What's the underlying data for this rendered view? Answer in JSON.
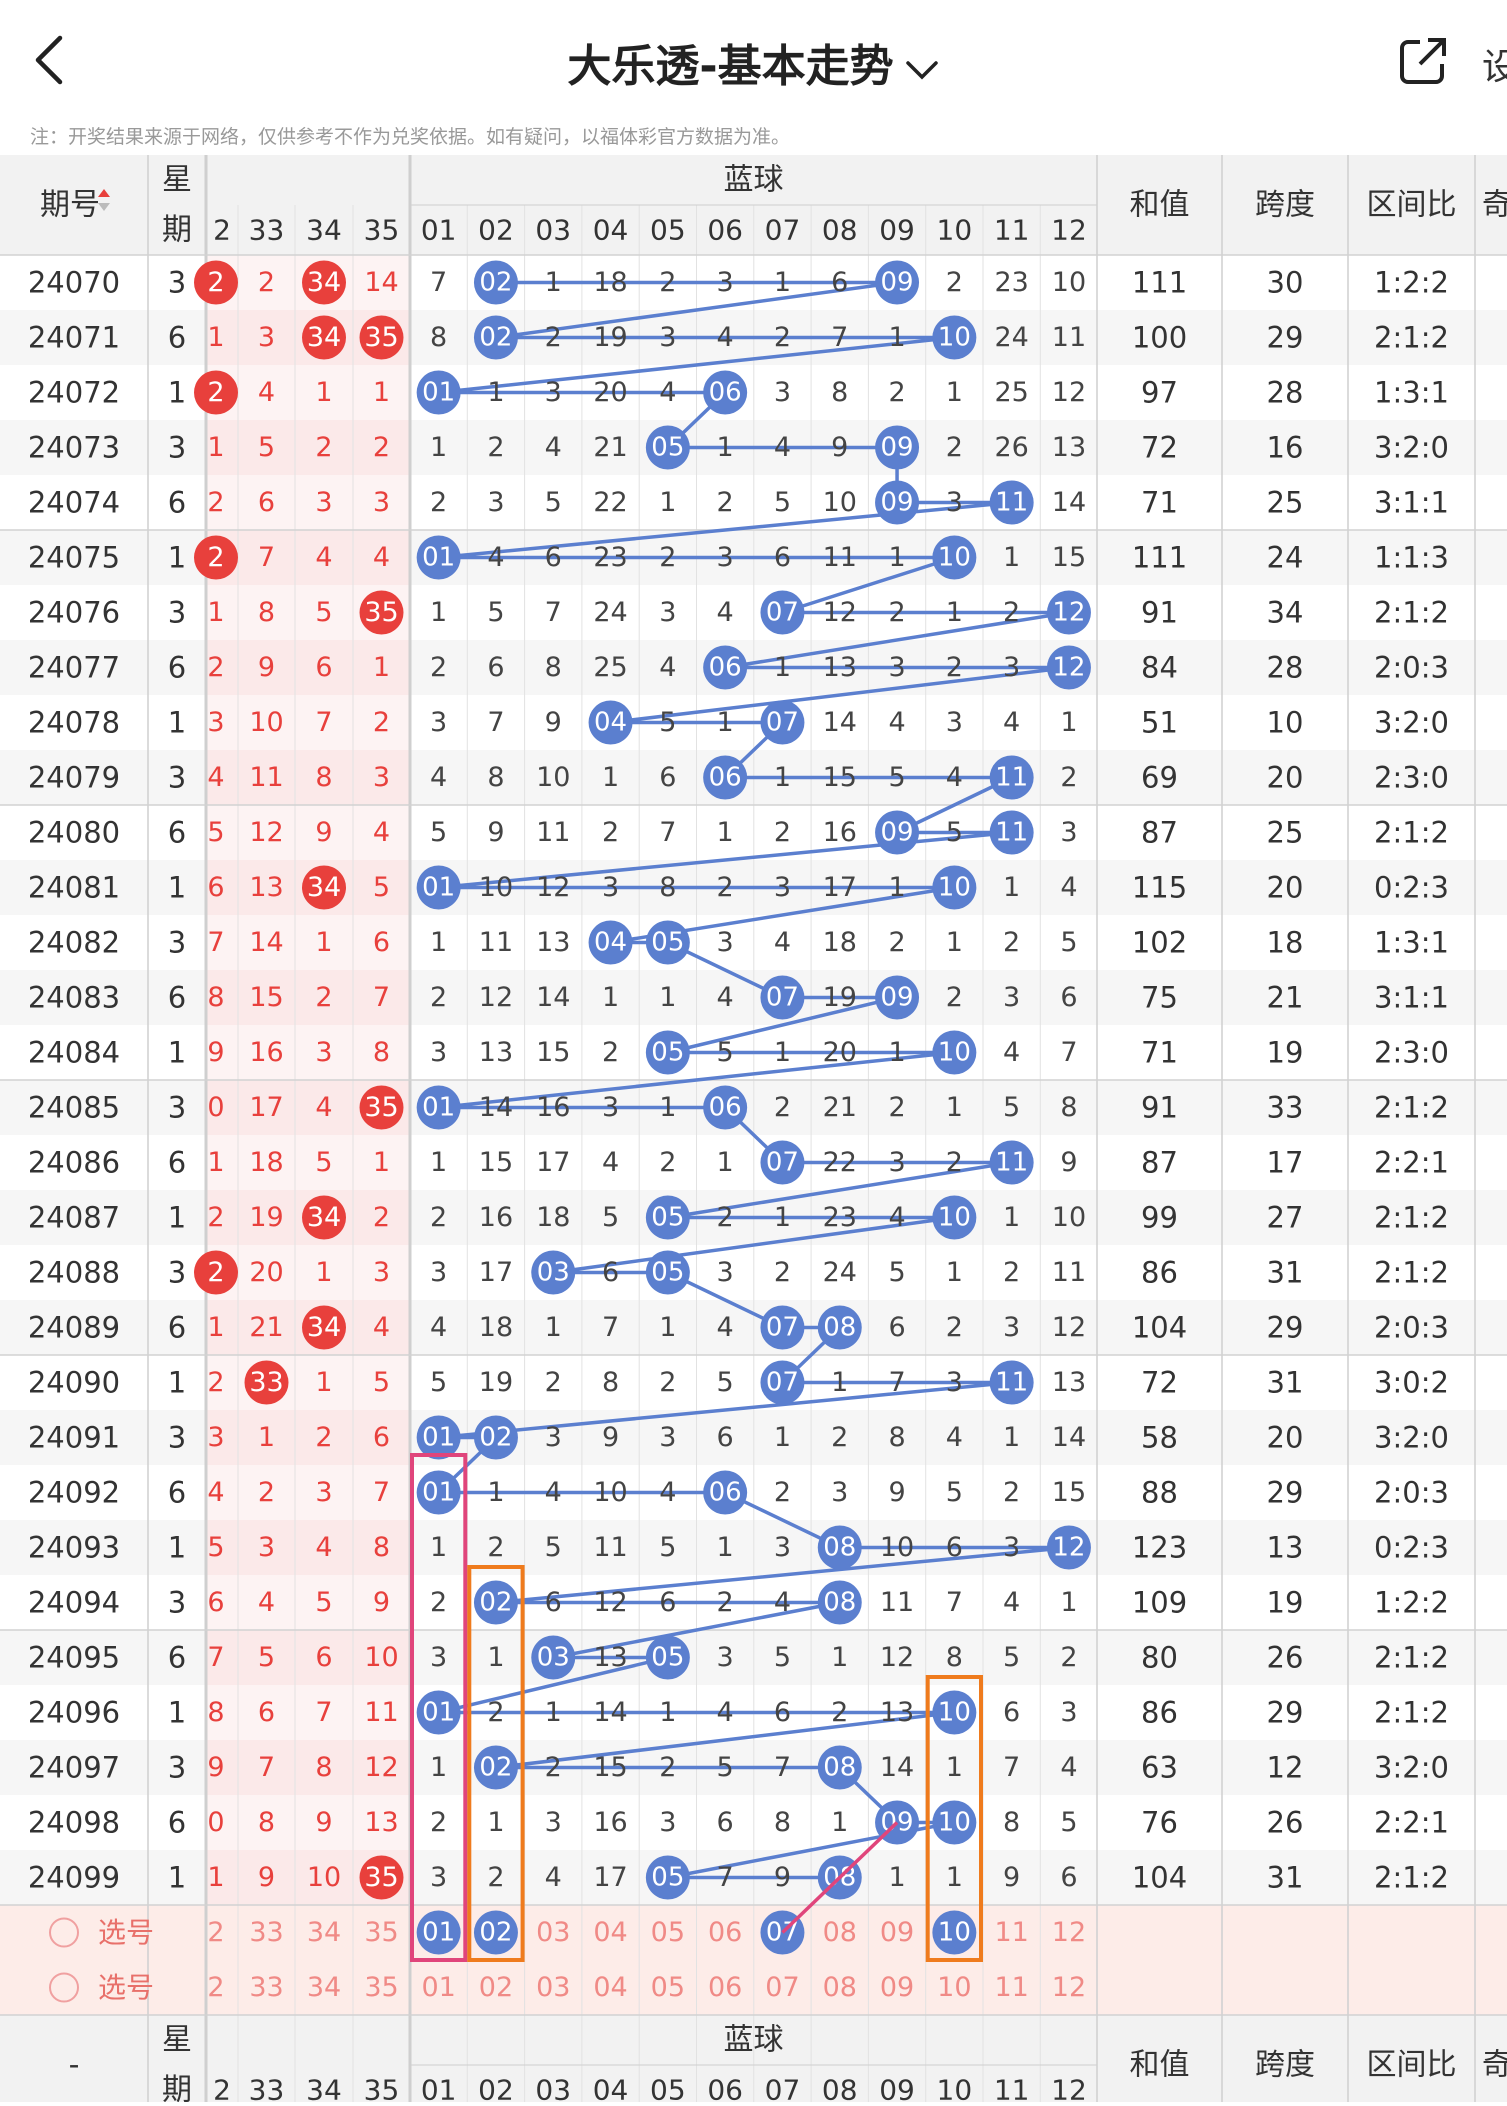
{
  "header": {
    "title": "大乐透-基本走势",
    "settings_label": "设"
  },
  "notice": "注：开奖结果来源于网络，仅供参考不作为兑奖依据。如有疑问，以福体彩官方数据为准。",
  "table": {
    "col_issue": "期号",
    "col_week1": "星",
    "col_week2": "期",
    "blue_title": "蓝球",
    "col_sum": "和值",
    "col_span": "跨度",
    "col_ratio": "区间比",
    "col_odd": "奇",
    "red_headers": [
      "2",
      "33",
      "34",
      "35"
    ],
    "blue_headers": [
      "01",
      "02",
      "03",
      "04",
      "05",
      "06",
      "07",
      "08",
      "09",
      "10",
      "11",
      "12"
    ],
    "bottom_issue": "-",
    "select_label": "选号",
    "select_red": [
      "2",
      "33",
      "34",
      "35"
    ],
    "select1_blue": [
      "01",
      "02",
      "03",
      "04",
      "05",
      "06",
      "07",
      "08",
      "09",
      "10",
      "11",
      "12"
    ],
    "select1_hits": [
      1,
      2,
      7,
      10
    ],
    "select2_blue": [
      "01",
      "02",
      "03",
      "04",
      "05",
      "06",
      "07",
      "08",
      "09",
      "10",
      "11",
      "12"
    ],
    "rows": [
      {
        "issue": "24070",
        "week": "3",
        "red": [
          "2",
          "2",
          "34",
          "14"
        ],
        "redhits": [
          0,
          2
        ],
        "blue": [
          "7",
          "02",
          "1",
          "18",
          "2",
          "3",
          "1",
          "6",
          "09",
          "2",
          "23",
          "10"
        ],
        "hits": [
          2,
          9
        ],
        "sum": "111",
        "span": "30",
        "ratio": "1:2:2"
      },
      {
        "issue": "24071",
        "week": "6",
        "red": [
          "1",
          "3",
          "34",
          "35"
        ],
        "redhits": [
          2,
          3
        ],
        "blue": [
          "8",
          "02",
          "2",
          "19",
          "3",
          "4",
          "2",
          "7",
          "1",
          "10",
          "24",
          "11"
        ],
        "hits": [
          2,
          10
        ],
        "sum": "100",
        "span": "29",
        "ratio": "2:1:2"
      },
      {
        "issue": "24072",
        "week": "1",
        "red": [
          "2",
          "4",
          "1",
          "1"
        ],
        "redhits": [
          0
        ],
        "blue": [
          "01",
          "1",
          "3",
          "20",
          "4",
          "06",
          "3",
          "8",
          "2",
          "1",
          "25",
          "12"
        ],
        "hits": [
          1,
          6
        ],
        "sum": "97",
        "span": "28",
        "ratio": "1:3:1"
      },
      {
        "issue": "24073",
        "week": "3",
        "red": [
          "1",
          "5",
          "2",
          "2"
        ],
        "redhits": [],
        "blue": [
          "1",
          "2",
          "4",
          "21",
          "05",
          "1",
          "4",
          "9",
          "09",
          "2",
          "26",
          "13"
        ],
        "hits": [
          5,
          9
        ],
        "sum": "72",
        "span": "16",
        "ratio": "3:2:0"
      },
      {
        "issue": "24074",
        "week": "6",
        "red": [
          "2",
          "6",
          "3",
          "3"
        ],
        "redhits": [],
        "blue": [
          "2",
          "3",
          "5",
          "22",
          "1",
          "2",
          "5",
          "10",
          "09",
          "3",
          "11",
          "14"
        ],
        "hits": [
          9,
          11
        ],
        "sum": "71",
        "span": "25",
        "ratio": "3:1:1"
      },
      {
        "issue": "24075",
        "week": "1",
        "red": [
          "2",
          "7",
          "4",
          "4"
        ],
        "redhits": [
          0
        ],
        "blue": [
          "01",
          "4",
          "6",
          "23",
          "2",
          "3",
          "6",
          "11",
          "1",
          "10",
          "1",
          "15"
        ],
        "hits": [
          1,
          10
        ],
        "sum": "111",
        "span": "24",
        "ratio": "1:1:3"
      },
      {
        "issue": "24076",
        "week": "3",
        "red": [
          "1",
          "8",
          "5",
          "35"
        ],
        "redhits": [
          3
        ],
        "blue": [
          "1",
          "5",
          "7",
          "24",
          "3",
          "4",
          "07",
          "12",
          "2",
          "1",
          "2",
          "12"
        ],
        "hits": [
          7,
          12
        ],
        "sum": "91",
        "span": "34",
        "ratio": "2:1:2"
      },
      {
        "issue": "24077",
        "week": "6",
        "red": [
          "2",
          "9",
          "6",
          "1"
        ],
        "redhits": [],
        "blue": [
          "2",
          "6",
          "8",
          "25",
          "4",
          "06",
          "1",
          "13",
          "3",
          "2",
          "3",
          "12"
        ],
        "hits": [
          6,
          12
        ],
        "sum": "84",
        "span": "28",
        "ratio": "2:0:3"
      },
      {
        "issue": "24078",
        "week": "1",
        "red": [
          "3",
          "10",
          "7",
          "2"
        ],
        "redhits": [],
        "blue": [
          "3",
          "7",
          "9",
          "04",
          "5",
          "1",
          "07",
          "14",
          "4",
          "3",
          "4",
          "1"
        ],
        "hits": [
          4,
          7
        ],
        "sum": "51",
        "span": "10",
        "ratio": "3:2:0"
      },
      {
        "issue": "24079",
        "week": "3",
        "red": [
          "4",
          "11",
          "8",
          "3"
        ],
        "redhits": [],
        "blue": [
          "4",
          "8",
          "10",
          "1",
          "6",
          "06",
          "1",
          "15",
          "5",
          "4",
          "11",
          "2"
        ],
        "hits": [
          6,
          11
        ],
        "sum": "69",
        "span": "20",
        "ratio": "2:3:0"
      },
      {
        "issue": "24080",
        "week": "6",
        "red": [
          "5",
          "12",
          "9",
          "4"
        ],
        "redhits": [],
        "blue": [
          "5",
          "9",
          "11",
          "2",
          "7",
          "1",
          "2",
          "16",
          "09",
          "5",
          "11",
          "3"
        ],
        "hits": [
          9,
          11
        ],
        "sum": "87",
        "span": "25",
        "ratio": "2:1:2"
      },
      {
        "issue": "24081",
        "week": "1",
        "red": [
          "6",
          "13",
          "34",
          "5"
        ],
        "redhits": [
          2
        ],
        "blue": [
          "01",
          "10",
          "12",
          "3",
          "8",
          "2",
          "3",
          "17",
          "1",
          "10",
          "1",
          "4"
        ],
        "hits": [
          1,
          10
        ],
        "sum": "115",
        "span": "20",
        "ratio": "0:2:3"
      },
      {
        "issue": "24082",
        "week": "3",
        "red": [
          "7",
          "14",
          "1",
          "6"
        ],
        "redhits": [],
        "blue": [
          "1",
          "11",
          "13",
          "04",
          "05",
          "3",
          "4",
          "18",
          "2",
          "1",
          "2",
          "5"
        ],
        "hits": [
          4,
          5
        ],
        "sum": "102",
        "span": "18",
        "ratio": "1:3:1"
      },
      {
        "issue": "24083",
        "week": "6",
        "red": [
          "8",
          "15",
          "2",
          "7"
        ],
        "redhits": [],
        "blue": [
          "2",
          "12",
          "14",
          "1",
          "1",
          "4",
          "07",
          "19",
          "09",
          "2",
          "3",
          "6"
        ],
        "hits": [
          7,
          9
        ],
        "sum": "75",
        "span": "21",
        "ratio": "3:1:1"
      },
      {
        "issue": "24084",
        "week": "1",
        "red": [
          "9",
          "16",
          "3",
          "8"
        ],
        "redhits": [],
        "blue": [
          "3",
          "13",
          "15",
          "2",
          "05",
          "5",
          "1",
          "20",
          "1",
          "10",
          "4",
          "7"
        ],
        "hits": [
          5,
          10
        ],
        "sum": "71",
        "span": "19",
        "ratio": "2:3:0"
      },
      {
        "issue": "24085",
        "week": "3",
        "red": [
          "0",
          "17",
          "4",
          "35"
        ],
        "redhits": [
          3
        ],
        "blue": [
          "01",
          "14",
          "16",
          "3",
          "1",
          "06",
          "2",
          "21",
          "2",
          "1",
          "5",
          "8"
        ],
        "hits": [
          1,
          6
        ],
        "sum": "91",
        "span": "33",
        "ratio": "2:1:2"
      },
      {
        "issue": "24086",
        "week": "6",
        "red": [
          "1",
          "18",
          "5",
          "1"
        ],
        "redhits": [],
        "blue": [
          "1",
          "15",
          "17",
          "4",
          "2",
          "1",
          "07",
          "22",
          "3",
          "2",
          "11",
          "9"
        ],
        "hits": [
          7,
          11
        ],
        "sum": "87",
        "span": "17",
        "ratio": "2:2:1"
      },
      {
        "issue": "24087",
        "week": "1",
        "red": [
          "2",
          "19",
          "34",
          "2"
        ],
        "redhits": [
          2
        ],
        "blue": [
          "2",
          "16",
          "18",
          "5",
          "05",
          "2",
          "1",
          "23",
          "4",
          "10",
          "1",
          "10"
        ],
        "hits": [
          5,
          10
        ],
        "sum": "99",
        "span": "27",
        "ratio": "2:1:2"
      },
      {
        "issue": "24088",
        "week": "3",
        "red": [
          "2",
          "20",
          "1",
          "3"
        ],
        "redhits": [
          0
        ],
        "blue": [
          "3",
          "17",
          "03",
          "6",
          "05",
          "3",
          "2",
          "24",
          "5",
          "1",
          "2",
          "11"
        ],
        "hits": [
          3,
          5
        ],
        "sum": "86",
        "span": "31",
        "ratio": "2:1:2"
      },
      {
        "issue": "24089",
        "week": "6",
        "red": [
          "1",
          "21",
          "34",
          "4"
        ],
        "redhits": [
          2
        ],
        "blue": [
          "4",
          "18",
          "1",
          "7",
          "1",
          "4",
          "07",
          "08",
          "6",
          "2",
          "3",
          "12"
        ],
        "hits": [
          7,
          8
        ],
        "sum": "104",
        "span": "29",
        "ratio": "2:0:3"
      },
      {
        "issue": "24090",
        "week": "1",
        "red": [
          "2",
          "33",
          "1",
          "5"
        ],
        "redhits": [
          1
        ],
        "blue": [
          "5",
          "19",
          "2",
          "8",
          "2",
          "5",
          "07",
          "1",
          "7",
          "3",
          "11",
          "13"
        ],
        "hits": [
          7,
          11
        ],
        "sum": "72",
        "span": "31",
        "ratio": "3:0:2"
      },
      {
        "issue": "24091",
        "week": "3",
        "red": [
          "3",
          "1",
          "2",
          "6"
        ],
        "redhits": [],
        "blue": [
          "01",
          "02",
          "3",
          "9",
          "3",
          "6",
          "1",
          "2",
          "8",
          "4",
          "1",
          "14"
        ],
        "hits": [
          1,
          2
        ],
        "sum": "58",
        "span": "20",
        "ratio": "3:2:0"
      },
      {
        "issue": "24092",
        "week": "6",
        "red": [
          "4",
          "2",
          "3",
          "7"
        ],
        "redhits": [],
        "blue": [
          "01",
          "1",
          "4",
          "10",
          "4",
          "06",
          "2",
          "3",
          "9",
          "5",
          "2",
          "15"
        ],
        "hits": [
          1,
          6
        ],
        "sum": "88",
        "span": "29",
        "ratio": "2:0:3"
      },
      {
        "issue": "24093",
        "week": "1",
        "red": [
          "5",
          "3",
          "4",
          "8"
        ],
        "redhits": [],
        "blue": [
          "1",
          "2",
          "5",
          "11",
          "5",
          "1",
          "3",
          "08",
          "10",
          "6",
          "3",
          "12"
        ],
        "hits": [
          8,
          12
        ],
        "sum": "123",
        "span": "13",
        "ratio": "0:2:3"
      },
      {
        "issue": "24094",
        "week": "3",
        "red": [
          "6",
          "4",
          "5",
          "9"
        ],
        "redhits": [],
        "blue": [
          "2",
          "02",
          "6",
          "12",
          "6",
          "2",
          "4",
          "08",
          "11",
          "7",
          "4",
          "1"
        ],
        "hits": [
          2,
          8
        ],
        "sum": "109",
        "span": "19",
        "ratio": "1:2:2"
      },
      {
        "issue": "24095",
        "week": "6",
        "red": [
          "7",
          "5",
          "6",
          "10"
        ],
        "redhits": [],
        "blue": [
          "3",
          "1",
          "03",
          "13",
          "05",
          "3",
          "5",
          "1",
          "12",
          "8",
          "5",
          "2"
        ],
        "hits": [
          3,
          5
        ],
        "sum": "80",
        "span": "26",
        "ratio": "2:1:2"
      },
      {
        "issue": "24096",
        "week": "1",
        "red": [
          "8",
          "6",
          "7",
          "11"
        ],
        "redhits": [],
        "blue": [
          "01",
          "2",
          "1",
          "14",
          "1",
          "4",
          "6",
          "2",
          "13",
          "10",
          "6",
          "3"
        ],
        "hits": [
          1,
          10
        ],
        "sum": "86",
        "span": "29",
        "ratio": "2:1:2"
      },
      {
        "issue": "24097",
        "week": "3",
        "red": [
          "9",
          "7",
          "8",
          "12"
        ],
        "redhits": [],
        "blue": [
          "1",
          "02",
          "2",
          "15",
          "2",
          "5",
          "7",
          "08",
          "14",
          "1",
          "7",
          "4"
        ],
        "hits": [
          2,
          8
        ],
        "sum": "63",
        "span": "12",
        "ratio": "3:2:0"
      },
      {
        "issue": "24098",
        "week": "6",
        "red": [
          "0",
          "8",
          "9",
          "13"
        ],
        "redhits": [],
        "blue": [
          "2",
          "1",
          "3",
          "16",
          "3",
          "6",
          "8",
          "1",
          "09",
          "10",
          "8",
          "5"
        ],
        "hits": [
          9,
          10
        ],
        "sum": "76",
        "span": "26",
        "ratio": "2:2:1"
      },
      {
        "issue": "24099",
        "week": "1",
        "red": [
          "1",
          "9",
          "10",
          "35"
        ],
        "redhits": [
          3
        ],
        "blue": [
          "3",
          "2",
          "4",
          "17",
          "05",
          "7",
          "9",
          "08",
          "1",
          "1",
          "9",
          "6"
        ],
        "hits": [
          5,
          8
        ],
        "sum": "104",
        "span": "31",
        "ratio": "2:1:2"
      }
    ]
  },
  "colors": {
    "blue_ball": "#5b7fcf",
    "red_ball": "#e8403c",
    "red_text": "#e8403c",
    "line": "#5b7fcf",
    "pink": "#e0457b",
    "orange": "#ef7b1d",
    "select_bg": "#fdece8"
  }
}
